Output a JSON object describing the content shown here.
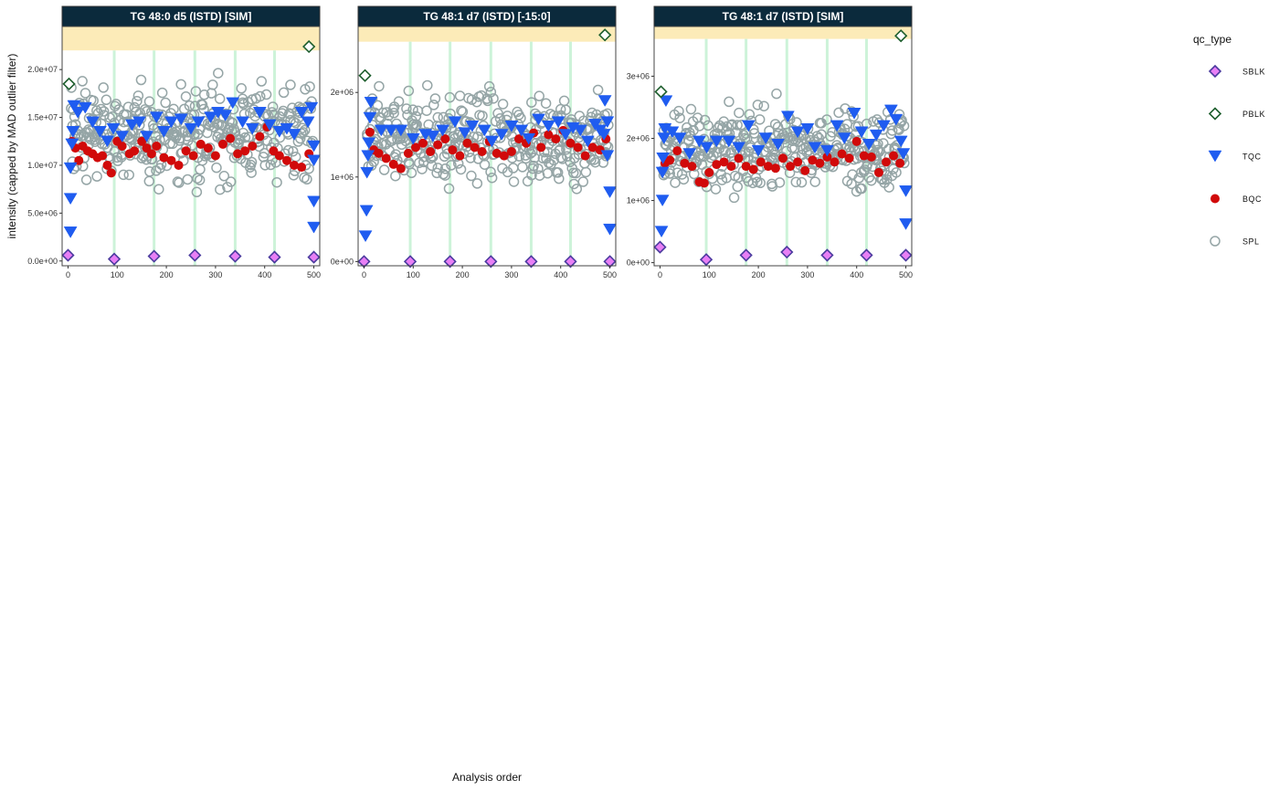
{
  "chart_data": {
    "type": "scatter",
    "xlabel": "Analysis order",
    "ylabel": "intensity (capped by MAD outlier filter)",
    "legend": {
      "title": "qc_type",
      "position": "right",
      "entries": [
        {
          "label": "SBLK",
          "shape": "diamond",
          "fill": "#e87ff5",
          "stroke": "#4a3a9e"
        },
        {
          "label": "PBLK",
          "shape": "diamond",
          "fill": "#ffffff",
          "stroke": "#1d5e2d"
        },
        {
          "label": "TQC",
          "shape": "triangle-down",
          "fill": "#1f5cf0",
          "stroke": "#1f5cf0"
        },
        {
          "label": "BQC",
          "shape": "circle-filled",
          "fill": "#d10a0a",
          "stroke": "#d10a0a"
        },
        {
          "label": "SPL",
          "shape": "circle-open",
          "fill": "none",
          "stroke": "#95a5a6"
        }
      ]
    },
    "batch_boundaries": [
      94,
      175,
      258,
      340,
      420
    ],
    "xlim": [
      -12,
      512
    ],
    "xticks": [
      0,
      100,
      200,
      300,
      400,
      500
    ],
    "panels": [
      {
        "title": "TG 48:0 d5 (ISTD) [SIM]",
        "ylim": [
          -500000.0,
          24500000.0
        ],
        "yticks": [
          0,
          5000000,
          10000000,
          15000000,
          20000000
        ],
        "ytick_labels": [
          "0.0e+00",
          "5.0e+06",
          "1.0e+07",
          "1.5e+07",
          "2.0e+07"
        ],
        "outlier_band_from": 22000000.0,
        "spl_center": 13500000.0,
        "spl_spread": 4200000.0,
        "bqc": [
          [
            8,
            12500000.0
          ],
          [
            15,
            11800000.0
          ],
          [
            22,
            10500000.0
          ],
          [
            30,
            12000000.0
          ],
          [
            40,
            11500000.0
          ],
          [
            50,
            11200000.0
          ],
          [
            60,
            10800000.0
          ],
          [
            70,
            11000000.0
          ],
          [
            80,
            10000000.0
          ],
          [
            88,
            9200000.0
          ],
          [
            100,
            12500000.0
          ],
          [
            110,
            12000000.0
          ],
          [
            125,
            11200000.0
          ],
          [
            135,
            11500000.0
          ],
          [
            150,
            12500000.0
          ],
          [
            160,
            11800000.0
          ],
          [
            170,
            11200000.0
          ],
          [
            180,
            12000000.0
          ],
          [
            195,
            10800000.0
          ],
          [
            210,
            10500000.0
          ],
          [
            225,
            10000000.0
          ],
          [
            240,
            11500000.0
          ],
          [
            255,
            11000000.0
          ],
          [
            270,
            12200000.0
          ],
          [
            285,
            11800000.0
          ],
          [
            300,
            11000000.0
          ],
          [
            315,
            12200000.0
          ],
          [
            330,
            12800000.0
          ],
          [
            345,
            11200000.0
          ],
          [
            360,
            11500000.0
          ],
          [
            375,
            12000000.0
          ],
          [
            390,
            13000000.0
          ],
          [
            405,
            14000000.0
          ],
          [
            418,
            11500000.0
          ],
          [
            430,
            11000000.0
          ],
          [
            445,
            10500000.0
          ],
          [
            460,
            10000000.0
          ],
          [
            475,
            9800000.0
          ],
          [
            490,
            11200000.0
          ]
        ],
        "tqc": [
          [
            5,
            3000000.0
          ],
          [
            5,
            6500000.0
          ],
          [
            5,
            9700000.0
          ],
          [
            8,
            12200000.0
          ],
          [
            10,
            13500000.0
          ],
          [
            12,
            16200000.0
          ],
          [
            20,
            15500000.0
          ],
          [
            35,
            16000000.0
          ],
          [
            50,
            14500000.0
          ],
          [
            65,
            13500000.0
          ],
          [
            80,
            12500000.0
          ],
          [
            92,
            13800000.0
          ],
          [
            110,
            13000000.0
          ],
          [
            130,
            14200000.0
          ],
          [
            145,
            14500000.0
          ],
          [
            160,
            13000000.0
          ],
          [
            180,
            15000000.0
          ],
          [
            195,
            13500000.0
          ],
          [
            210,
            14500000.0
          ],
          [
            230,
            14800000.0
          ],
          [
            250,
            13800000.0
          ],
          [
            265,
            14500000.0
          ],
          [
            290,
            15000000.0
          ],
          [
            305,
            15500000.0
          ],
          [
            320,
            15200000.0
          ],
          [
            335,
            16500000.0
          ],
          [
            355,
            14500000.0
          ],
          [
            375,
            13800000.0
          ],
          [
            390,
            15500000.0
          ],
          [
            410,
            14200000.0
          ],
          [
            430,
            13500000.0
          ],
          [
            445,
            13800000.0
          ],
          [
            460,
            13200000.0
          ],
          [
            475,
            15500000.0
          ],
          [
            488,
            14500000.0
          ],
          [
            495,
            16000000.0
          ],
          [
            500,
            12000000.0
          ],
          [
            500,
            10500000.0
          ],
          [
            500,
            6200000.0
          ],
          [
            500,
            3500000.0
          ]
        ],
        "sblk": [
          [
            0,
            600000.0
          ],
          [
            94,
            200000.0
          ],
          [
            175,
            500000.0
          ],
          [
            258,
            600000.0
          ],
          [
            340,
            500000.0
          ],
          [
            420,
            400000.0
          ],
          [
            500,
            400000.0
          ]
        ],
        "pblk": [
          [
            2,
            18500000.0
          ],
          [
            490,
            22400000.0
          ]
        ]
      },
      {
        "title": "TG 48:1 d7 (ISTD) [-15:0]",
        "ylim": [
          -50000.0,
          2780000.0
        ],
        "yticks": [
          0,
          1000000,
          2000000
        ],
        "ytick_labels": [
          "0e+00",
          "1e+06",
          "2e+06"
        ],
        "outlier_band_from": 2600000.0,
        "spl_center": 1450000.0,
        "spl_spread": 460000.0,
        "bqc": [
          [
            12,
            1530000.0
          ],
          [
            20,
            1320000.0
          ],
          [
            30,
            1280000.0
          ],
          [
            45,
            1220000.0
          ],
          [
            60,
            1150000.0
          ],
          [
            75,
            1100000.0
          ],
          [
            90,
            1280000.0
          ],
          [
            105,
            1350000.0
          ],
          [
            120,
            1400000.0
          ],
          [
            135,
            1300000.0
          ],
          [
            150,
            1380000.0
          ],
          [
            165,
            1450000.0
          ],
          [
            180,
            1320000.0
          ],
          [
            195,
            1250000.0
          ],
          [
            210,
            1400000.0
          ],
          [
            225,
            1350000.0
          ],
          [
            240,
            1300000.0
          ],
          [
            255,
            1420000.0
          ],
          [
            270,
            1280000.0
          ],
          [
            285,
            1250000.0
          ],
          [
            300,
            1300000.0
          ],
          [
            315,
            1450000.0
          ],
          [
            330,
            1400000.0
          ],
          [
            345,
            1520000.0
          ],
          [
            360,
            1350000.0
          ],
          [
            375,
            1500000.0
          ],
          [
            390,
            1450000.0
          ],
          [
            405,
            1550000.0
          ],
          [
            420,
            1400000.0
          ],
          [
            435,
            1350000.0
          ],
          [
            450,
            1250000.0
          ],
          [
            465,
            1350000.0
          ],
          [
            480,
            1320000.0
          ],
          [
            492,
            1450000.0
          ]
        ],
        "tqc": [
          [
            3,
            300000.0
          ],
          [
            5,
            600000.0
          ],
          [
            6,
            1050000.0
          ],
          [
            8,
            1250000.0
          ],
          [
            10,
            1400000.0
          ],
          [
            12,
            1700000.0
          ],
          [
            14,
            1880000.0
          ],
          [
            35,
            1550000.0
          ],
          [
            55,
            1550000.0
          ],
          [
            75,
            1550000.0
          ],
          [
            100,
            1450000.0
          ],
          [
            125,
            1500000.0
          ],
          [
            140,
            1480000.0
          ],
          [
            160,
            1550000.0
          ],
          [
            185,
            1650000.0
          ],
          [
            205,
            1520000.0
          ],
          [
            220,
            1600000.0
          ],
          [
            245,
            1550000.0
          ],
          [
            260,
            1420000.0
          ],
          [
            280,
            1500000.0
          ],
          [
            300,
            1600000.0
          ],
          [
            320,
            1550000.0
          ],
          [
            335,
            1450000.0
          ],
          [
            355,
            1680000.0
          ],
          [
            375,
            1600000.0
          ],
          [
            395,
            1650000.0
          ],
          [
            410,
            1500000.0
          ],
          [
            425,
            1580000.0
          ],
          [
            440,
            1550000.0
          ],
          [
            455,
            1420000.0
          ],
          [
            470,
            1620000.0
          ],
          [
            480,
            1550000.0
          ],
          [
            488,
            1500000.0
          ],
          [
            490,
            1900000.0
          ],
          [
            495,
            1650000.0
          ],
          [
            495,
            1250000.0
          ],
          [
            500,
            820000.0
          ],
          [
            500,
            380000.0
          ]
        ],
        "sblk": [
          [
            0,
            0.0
          ],
          [
            94,
            0.0
          ],
          [
            175,
            0.0
          ],
          [
            258,
            0.0
          ],
          [
            340,
            0.0
          ],
          [
            420,
            0.0
          ],
          [
            500,
            0.0
          ]
        ],
        "pblk": [
          [
            2,
            2200000.0
          ],
          [
            490,
            2680000.0
          ]
        ]
      },
      {
        "title": "TG 48:1 d7 (ISTD) [SIM]",
        "ylim": [
          -50000.0,
          3800000.0
        ],
        "yticks": [
          0,
          1000000,
          2000000,
          3000000
        ],
        "ytick_labels": [
          "0e+00",
          "1e+06",
          "2e+06",
          "3e+06"
        ],
        "outlier_band_from": 3600000.0,
        "spl_center": 1850000.0,
        "spl_spread": 580000.0,
        "bqc": [
          [
            10,
            1600000.0
          ],
          [
            20,
            1650000.0
          ],
          [
            35,
            1800000.0
          ],
          [
            50,
            1600000.0
          ],
          [
            65,
            1550000.0
          ],
          [
            80,
            1300000.0
          ],
          [
            90,
            1280000.0
          ],
          [
            100,
            1450000.0
          ],
          [
            115,
            1580000.0
          ],
          [
            130,
            1620000.0
          ],
          [
            145,
            1550000.0
          ],
          [
            160,
            1680000.0
          ],
          [
            175,
            1550000.0
          ],
          [
            190,
            1500000.0
          ],
          [
            205,
            1620000.0
          ],
          [
            220,
            1550000.0
          ],
          [
            235,
            1520000.0
          ],
          [
            250,
            1680000.0
          ],
          [
            265,
            1550000.0
          ],
          [
            280,
            1620000.0
          ],
          [
            295,
            1480000.0
          ],
          [
            310,
            1650000.0
          ],
          [
            325,
            1600000.0
          ],
          [
            340,
            1700000.0
          ],
          [
            355,
            1620000.0
          ],
          [
            370,
            1750000.0
          ],
          [
            385,
            1680000.0
          ],
          [
            400,
            1950000.0
          ],
          [
            415,
            1720000.0
          ],
          [
            430,
            1700000.0
          ],
          [
            445,
            1450000.0
          ],
          [
            460,
            1620000.0
          ],
          [
            475,
            1720000.0
          ],
          [
            488,
            1600000.0
          ]
        ],
        "tqc": [
          [
            3,
            500000.0
          ],
          [
            5,
            1000000.0
          ],
          [
            5,
            1450000.0
          ],
          [
            6,
            1680000.0
          ],
          [
            8,
            2000000.0
          ],
          [
            10,
            2150000.0
          ],
          [
            12,
            2600000.0
          ],
          [
            25,
            2100000.0
          ],
          [
            40,
            2000000.0
          ],
          [
            60,
            1750000.0
          ],
          [
            80,
            1950000.0
          ],
          [
            95,
            1850000.0
          ],
          [
            115,
            1950000.0
          ],
          [
            140,
            1950000.0
          ],
          [
            160,
            1850000.0
          ],
          [
            180,
            2200000.0
          ],
          [
            200,
            1800000.0
          ],
          [
            215,
            2000000.0
          ],
          [
            240,
            1900000.0
          ],
          [
            260,
            2350000.0
          ],
          [
            280,
            2100000.0
          ],
          [
            300,
            2150000.0
          ],
          [
            315,
            1850000.0
          ],
          [
            340,
            1800000.0
          ],
          [
            360,
            2200000.0
          ],
          [
            375,
            2000000.0
          ],
          [
            395,
            2400000.0
          ],
          [
            410,
            2100000.0
          ],
          [
            425,
            1900000.0
          ],
          [
            440,
            2050000.0
          ],
          [
            455,
            2200000.0
          ],
          [
            470,
            2450000.0
          ],
          [
            480,
            2300000.0
          ],
          [
            490,
            1950000.0
          ],
          [
            495,
            1750000.0
          ],
          [
            500,
            1150000.0
          ],
          [
            500,
            620000.0
          ]
        ],
        "sblk": [
          [
            0,
            250000.0
          ],
          [
            94,
            50000.0
          ],
          [
            175,
            120000.0
          ],
          [
            258,
            170000.0
          ],
          [
            340,
            120000.0
          ],
          [
            420,
            120000.0
          ],
          [
            500,
            120000.0
          ]
        ],
        "pblk": [
          [
            2,
            2750000.0
          ],
          [
            490,
            3650000.0
          ]
        ]
      }
    ]
  }
}
